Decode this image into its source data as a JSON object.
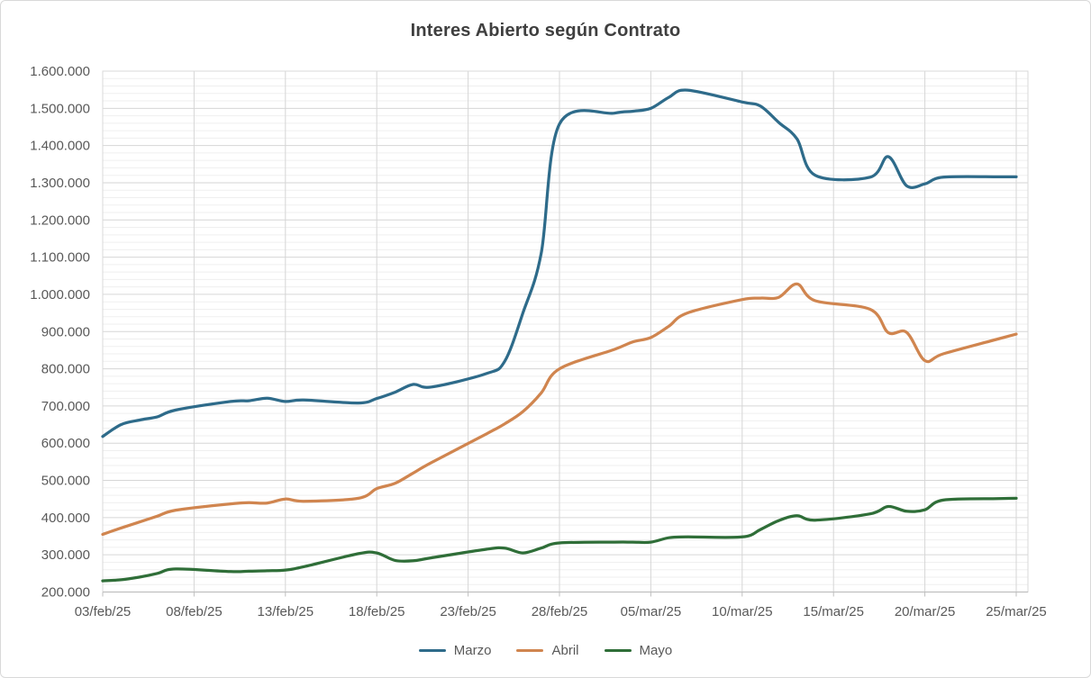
{
  "title": "Interes Abierto según Contrato",
  "y_axis": {
    "min": 200000,
    "max": 1600000,
    "major_step": 100000,
    "minor_step": 20000,
    "tick_labels": [
      "1.600.000",
      "1.500.000",
      "1.400.000",
      "1.300.000",
      "1.200.000",
      "1.100.000",
      "1.000.000",
      "900.000",
      "800.000",
      "700.000",
      "600.000",
      "500.000",
      "400.000",
      "300.000",
      "200.000"
    ]
  },
  "x_axis": {
    "tick_labels": [
      "03/feb/25",
      "08/feb/25",
      "13/feb/25",
      "18/feb/25",
      "23/feb/25",
      "28/feb/25",
      "05/mar/25",
      "10/mar/25",
      "15/mar/25",
      "20/mar/25",
      "25/mar/25"
    ],
    "tick_day_offsets": [
      0,
      5,
      10,
      15,
      20,
      25,
      30,
      35,
      40,
      45,
      50
    ],
    "total_days": 50
  },
  "legend": {
    "items": [
      {
        "label": "Marzo",
        "color": "#2E6B8A"
      },
      {
        "label": "Abril",
        "color": "#D0854F"
      },
      {
        "label": "Mayo",
        "color": "#2F6E38"
      }
    ]
  },
  "chart_data": {
    "type": "line",
    "title": "Interes Abierto según Contrato",
    "xlabel": "",
    "ylabel": "",
    "ylim": [
      200000,
      1600000
    ],
    "grid": "major-and-minor-horizontal, major-vertical",
    "legend_position": "bottom",
    "smooth_lines": true,
    "x_dates": [
      "03/feb/25",
      "04/feb/25",
      "05/feb/25",
      "06/feb/25",
      "07/feb/25",
      "10/feb/25",
      "11/feb/25",
      "12/feb/25",
      "13/feb/25",
      "14/feb/25",
      "17/feb/25",
      "18/feb/25",
      "19/feb/25",
      "20/feb/25",
      "21/feb/25",
      "24/feb/25",
      "25/feb/25",
      "26/feb/25",
      "27/feb/25",
      "28/feb/25",
      "03/mar/25",
      "04/mar/25",
      "05/mar/25",
      "06/mar/25",
      "07/mar/25",
      "10/mar/25",
      "11/mar/25",
      "12/mar/25",
      "13/mar/25",
      "14/mar/25",
      "17/mar/25",
      "18/mar/25",
      "19/mar/25",
      "20/mar/25",
      "21/mar/25",
      "24/mar/25",
      "25/mar/25"
    ],
    "day_offsets": [
      0,
      1,
      2,
      3,
      4,
      7,
      8,
      9,
      10,
      11,
      14,
      15,
      16,
      17,
      18,
      21,
      22,
      23,
      24,
      25,
      28,
      29,
      30,
      31,
      32,
      35,
      36,
      37,
      38,
      39,
      42,
      43,
      44,
      45,
      46,
      49,
      50
    ],
    "series": [
      {
        "name": "Marzo",
        "color": "#2E6B8A",
        "values": [
          618000,
          650000,
          662000,
          671000,
          689000,
          712000,
          714000,
          721000,
          712000,
          716000,
          708000,
          720000,
          737000,
          758000,
          751000,
          787000,
          820000,
          950000,
          1110000,
          1458000,
          1487000,
          1492000,
          1500000,
          1530000,
          1549000,
          1517000,
          1506000,
          1462000,
          1418000,
          1320000,
          1315000,
          1370000,
          1292000,
          1297000,
          1315000,
          1316000,
          1316000
        ]
      },
      {
        "name": "Abril",
        "color": "#D0854F",
        "values": [
          355000,
          372000,
          388000,
          404000,
          420000,
          437000,
          440000,
          439000,
          450000,
          444000,
          452000,
          478000,
          492000,
          520000,
          548000,
          625000,
          652000,
          685000,
          735000,
          800000,
          852000,
          872000,
          884000,
          915000,
          950000,
          986000,
          990000,
          992000,
          1028000,
          983000,
          960000,
          897000,
          898000,
          822000,
          840000,
          880000,
          893000
        ]
      },
      {
        "name": "Mayo",
        "color": "#2F6E38",
        "values": [
          230000,
          233000,
          240000,
          250000,
          262000,
          255000,
          256000,
          257000,
          259000,
          268000,
          303000,
          305000,
          285000,
          284000,
          292000,
          315000,
          318000,
          305000,
          318000,
          332000,
          334000,
          334000,
          334000,
          346000,
          348000,
          348000,
          368000,
          392000,
          405000,
          393000,
          410000,
          430000,
          417000,
          421000,
          447000,
          451000,
          452000
        ]
      }
    ]
  },
  "style": {
    "major_grid_color": "#d6d6d6",
    "minor_grid_color": "#efefef",
    "plot_border_color": "#d9d9d9",
    "axis_line_color": "#bfbfbf",
    "label_color": "#595959",
    "title_color": "#3f3f3f"
  }
}
